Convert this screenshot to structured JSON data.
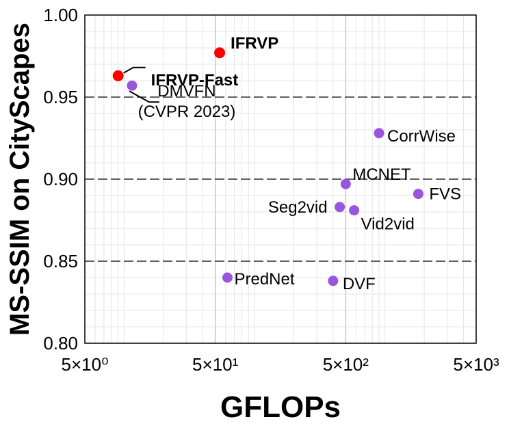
{
  "chart_data": {
    "type": "scatter",
    "title": "",
    "xlabel": "GFLOPs",
    "ylabel": "MS-SSIM on CityScapes",
    "x_scale": "log",
    "xlim": [
      5,
      5000
    ],
    "ylim": [
      0.8,
      1.0
    ],
    "grid": true,
    "x_ticks": [
      {
        "value": 5,
        "label": "5×10⁰"
      },
      {
        "value": 50,
        "label": "5×10¹"
      },
      {
        "value": 500,
        "label": "5×10²"
      },
      {
        "value": 5000,
        "label": "5×10³"
      }
    ],
    "y_ticks": [
      {
        "value": 0.8,
        "label": "0.80"
      },
      {
        "value": 0.85,
        "label": "0.85"
      },
      {
        "value": 0.9,
        "label": "0.90"
      },
      {
        "value": 0.95,
        "label": "0.95"
      },
      {
        "value": 1.0,
        "label": "1.00"
      }
    ],
    "points": [
      {
        "name": "IFRVP",
        "x": 54,
        "y": 0.977,
        "color": "#ff0000",
        "highlight": true
      },
      {
        "name": "IFRVP-Fast",
        "x": 9,
        "y": 0.963,
        "color": "#ff0000",
        "highlight": true
      },
      {
        "name": "DMVFN",
        "name_line2": "(CVPR 2023)",
        "x": 11.5,
        "y": 0.957,
        "color": "#9955dd",
        "highlight": false
      },
      {
        "name": "CorrWise",
        "x": 900,
        "y": 0.928,
        "color": "#9955dd",
        "highlight": false
      },
      {
        "name": "MCNET",
        "x": 500,
        "y": 0.897,
        "color": "#9955dd",
        "highlight": false
      },
      {
        "name": "FVS",
        "x": 1800,
        "y": 0.891,
        "color": "#9955dd",
        "highlight": false
      },
      {
        "name": "Seg2vid",
        "x": 450,
        "y": 0.883,
        "color": "#9955dd",
        "highlight": false
      },
      {
        "name": "Vid2vid",
        "x": 580,
        "y": 0.881,
        "color": "#9955dd",
        "highlight": false
      },
      {
        "name": "PredNet",
        "x": 62,
        "y": 0.84,
        "color": "#9955dd",
        "highlight": false
      },
      {
        "name": "DVF",
        "x": 400,
        "y": 0.838,
        "color": "#9955dd",
        "highlight": false
      }
    ]
  }
}
